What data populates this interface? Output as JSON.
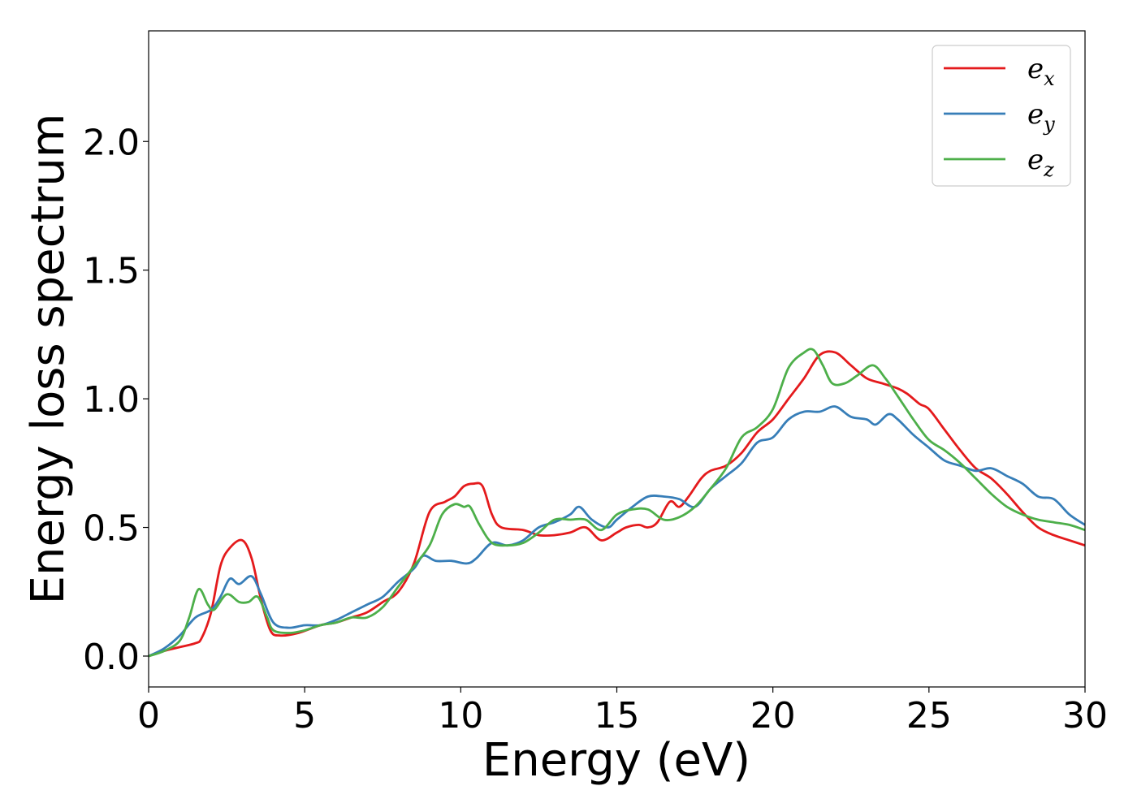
{
  "chart_data": {
    "type": "line",
    "xlabel": "Energy (eV)",
    "ylabel": "Energy loss spectrum",
    "xlim": [
      0,
      30
    ],
    "ylim": [
      -0.12,
      2.43
    ],
    "xticks": [
      0,
      5,
      10,
      15,
      20,
      25,
      30
    ],
    "xtick_labels": [
      "0",
      "5",
      "10",
      "15",
      "20",
      "25",
      "30"
    ],
    "yticks": [
      0.0,
      0.5,
      1.0,
      1.5,
      2.0
    ],
    "ytick_labels": [
      "0.0",
      "0.5",
      "1.0",
      "1.5",
      "2.0"
    ],
    "grid": false,
    "legend_position": "top-right",
    "series": [
      {
        "name": "e_x",
        "base": "e",
        "sub": "x",
        "color": "#e41a1c",
        "points": [
          [
            0,
            0
          ],
          [
            0.5,
            0.02
          ],
          [
            1,
            0.035
          ],
          [
            1.5,
            0.05
          ],
          [
            1.7,
            0.07
          ],
          [
            2,
            0.17
          ],
          [
            2.3,
            0.35
          ],
          [
            2.6,
            0.42
          ],
          [
            3,
            0.45
          ],
          [
            3.3,
            0.38
          ],
          [
            3.6,
            0.22
          ],
          [
            3.9,
            0.1
          ],
          [
            4.2,
            0.08
          ],
          [
            4.8,
            0.09
          ],
          [
            5.5,
            0.12
          ],
          [
            6,
            0.13
          ],
          [
            6.5,
            0.15
          ],
          [
            7,
            0.17
          ],
          [
            7.5,
            0.21
          ],
          [
            8,
            0.25
          ],
          [
            8.5,
            0.36
          ],
          [
            9,
            0.56
          ],
          [
            9.5,
            0.6
          ],
          [
            9.8,
            0.62
          ],
          [
            10.1,
            0.66
          ],
          [
            10.4,
            0.67
          ],
          [
            10.7,
            0.66
          ],
          [
            11,
            0.55
          ],
          [
            11.3,
            0.5
          ],
          [
            12,
            0.49
          ],
          [
            12.5,
            0.47
          ],
          [
            13,
            0.47
          ],
          [
            13.5,
            0.48
          ],
          [
            14,
            0.5
          ],
          [
            14.5,
            0.45
          ],
          [
            15,
            0.48
          ],
          [
            15.3,
            0.5
          ],
          [
            15.7,
            0.51
          ],
          [
            16,
            0.5
          ],
          [
            16.3,
            0.52
          ],
          [
            16.7,
            0.6
          ],
          [
            17,
            0.58
          ],
          [
            17.3,
            0.62
          ],
          [
            17.7,
            0.69
          ],
          [
            18,
            0.72
          ],
          [
            18.5,
            0.74
          ],
          [
            19,
            0.79
          ],
          [
            19.5,
            0.87
          ],
          [
            20,
            0.92
          ],
          [
            20.5,
            1.0
          ],
          [
            21,
            1.08
          ],
          [
            21.5,
            1.17
          ],
          [
            22,
            1.18
          ],
          [
            22.5,
            1.13
          ],
          [
            23,
            1.08
          ],
          [
            23.5,
            1.06
          ],
          [
            24,
            1.04
          ],
          [
            24.3,
            1.02
          ],
          [
            24.7,
            0.98
          ],
          [
            25,
            0.96
          ],
          [
            25.5,
            0.88
          ],
          [
            26,
            0.8
          ],
          [
            26.5,
            0.73
          ],
          [
            27,
            0.69
          ],
          [
            27.5,
            0.63
          ],
          [
            28,
            0.56
          ],
          [
            28.5,
            0.5
          ],
          [
            29,
            0.47
          ],
          [
            29.5,
            0.45
          ],
          [
            30,
            0.43
          ]
        ]
      },
      {
        "name": "e_y",
        "base": "e",
        "sub": "y",
        "color": "#377eb8",
        "points": [
          [
            0,
            0
          ],
          [
            0.5,
            0.03
          ],
          [
            1,
            0.08
          ],
          [
            1.5,
            0.15
          ],
          [
            2,
            0.18
          ],
          [
            2.3,
            0.23
          ],
          [
            2.6,
            0.3
          ],
          [
            2.9,
            0.28
          ],
          [
            3.3,
            0.31
          ],
          [
            3.6,
            0.24
          ],
          [
            4,
            0.13
          ],
          [
            4.5,
            0.11
          ],
          [
            5,
            0.12
          ],
          [
            5.5,
            0.12
          ],
          [
            6,
            0.14
          ],
          [
            6.5,
            0.17
          ],
          [
            7,
            0.2
          ],
          [
            7.5,
            0.23
          ],
          [
            8,
            0.29
          ],
          [
            8.5,
            0.34
          ],
          [
            8.8,
            0.39
          ],
          [
            9.2,
            0.37
          ],
          [
            9.7,
            0.37
          ],
          [
            10.2,
            0.36
          ],
          [
            10.5,
            0.38
          ],
          [
            11,
            0.44
          ],
          [
            11.5,
            0.43
          ],
          [
            12,
            0.45
          ],
          [
            12.5,
            0.5
          ],
          [
            13,
            0.52
          ],
          [
            13.5,
            0.55
          ],
          [
            13.8,
            0.58
          ],
          [
            14.2,
            0.53
          ],
          [
            14.7,
            0.5
          ],
          [
            15,
            0.53
          ],
          [
            15.5,
            0.58
          ],
          [
            16,
            0.62
          ],
          [
            16.5,
            0.62
          ],
          [
            17,
            0.61
          ],
          [
            17.5,
            0.58
          ],
          [
            18,
            0.65
          ],
          [
            18.5,
            0.7
          ],
          [
            19,
            0.75
          ],
          [
            19.5,
            0.83
          ],
          [
            20,
            0.85
          ],
          [
            20.5,
            0.92
          ],
          [
            21,
            0.95
          ],
          [
            21.5,
            0.95
          ],
          [
            22,
            0.97
          ],
          [
            22.5,
            0.93
          ],
          [
            23,
            0.92
          ],
          [
            23.3,
            0.9
          ],
          [
            23.7,
            0.94
          ],
          [
            24,
            0.92
          ],
          [
            24.5,
            0.86
          ],
          [
            25,
            0.81
          ],
          [
            25.5,
            0.76
          ],
          [
            26,
            0.74
          ],
          [
            26.5,
            0.72
          ],
          [
            27,
            0.73
          ],
          [
            27.5,
            0.7
          ],
          [
            28,
            0.67
          ],
          [
            28.5,
            0.62
          ],
          [
            29,
            0.61
          ],
          [
            29.5,
            0.55
          ],
          [
            30,
            0.51
          ]
        ]
      },
      {
        "name": "e_z",
        "base": "e",
        "sub": "z",
        "color": "#4daf4a",
        "points": [
          [
            0,
            0
          ],
          [
            0.5,
            0.02
          ],
          [
            1,
            0.06
          ],
          [
            1.3,
            0.15
          ],
          [
            1.6,
            0.26
          ],
          [
            1.9,
            0.2
          ],
          [
            2.1,
            0.18
          ],
          [
            2.5,
            0.24
          ],
          [
            2.9,
            0.21
          ],
          [
            3.2,
            0.21
          ],
          [
            3.5,
            0.23
          ],
          [
            3.8,
            0.15
          ],
          [
            4,
            0.1
          ],
          [
            4.5,
            0.09
          ],
          [
            5,
            0.1
          ],
          [
            5.5,
            0.12
          ],
          [
            6,
            0.13
          ],
          [
            6.5,
            0.15
          ],
          [
            7,
            0.15
          ],
          [
            7.5,
            0.19
          ],
          [
            8,
            0.27
          ],
          [
            8.5,
            0.35
          ],
          [
            9,
            0.43
          ],
          [
            9.4,
            0.55
          ],
          [
            9.8,
            0.59
          ],
          [
            10.1,
            0.58
          ],
          [
            10.3,
            0.58
          ],
          [
            10.6,
            0.51
          ],
          [
            11,
            0.44
          ],
          [
            11.5,
            0.43
          ],
          [
            12,
            0.44
          ],
          [
            12.5,
            0.48
          ],
          [
            13,
            0.53
          ],
          [
            13.5,
            0.53
          ],
          [
            14,
            0.53
          ],
          [
            14.5,
            0.49
          ],
          [
            15,
            0.55
          ],
          [
            15.5,
            0.57
          ],
          [
            16,
            0.57
          ],
          [
            16.5,
            0.53
          ],
          [
            17,
            0.54
          ],
          [
            17.5,
            0.58
          ],
          [
            18,
            0.65
          ],
          [
            18.5,
            0.73
          ],
          [
            19,
            0.85
          ],
          [
            19.5,
            0.89
          ],
          [
            20,
            0.96
          ],
          [
            20.5,
            1.12
          ],
          [
            21,
            1.18
          ],
          [
            21.3,
            1.19
          ],
          [
            21.6,
            1.13
          ],
          [
            21.9,
            1.06
          ],
          [
            22.3,
            1.06
          ],
          [
            22.7,
            1.09
          ],
          [
            23.2,
            1.13
          ],
          [
            23.6,
            1.08
          ],
          [
            24,
            1.01
          ],
          [
            24.5,
            0.92
          ],
          [
            25,
            0.84
          ],
          [
            25.5,
            0.8
          ],
          [
            26,
            0.75
          ],
          [
            26.5,
            0.69
          ],
          [
            27,
            0.63
          ],
          [
            27.5,
            0.58
          ],
          [
            28,
            0.55
          ],
          [
            28.5,
            0.53
          ],
          [
            29,
            0.52
          ],
          [
            29.5,
            0.51
          ],
          [
            30,
            0.49
          ]
        ]
      }
    ]
  }
}
